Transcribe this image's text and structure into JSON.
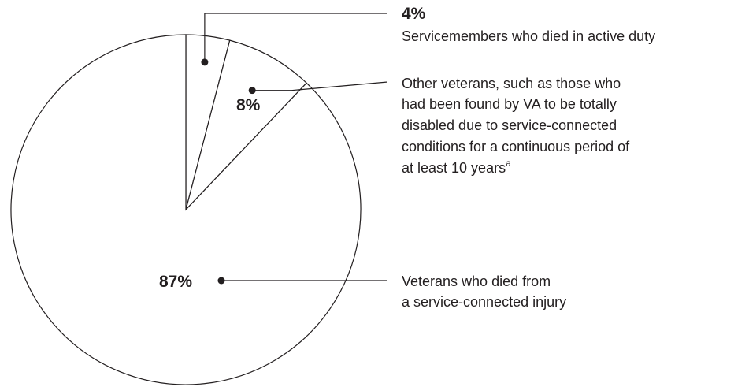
{
  "chart_data": {
    "type": "pie",
    "title": "",
    "slices": [
      {
        "value": 4,
        "label": "4%",
        "description_lines": [
          "Servicemembers who died in active duty"
        ]
      },
      {
        "value": 8,
        "label": "8%",
        "description_lines": [
          "Other veterans, such as those who",
          "had been found by VA to be totally",
          "disabled due to service-connected",
          "conditions for a continuous period of",
          "at least 10 years"
        ],
        "footnote_marker": "a"
      },
      {
        "value": 87,
        "label": "87%",
        "description_lines": [
          "Veterans who died from",
          "a service-connected injury"
        ]
      }
    ],
    "colors": {
      "fill": "#ffffff",
      "stroke": "#231f20"
    }
  }
}
